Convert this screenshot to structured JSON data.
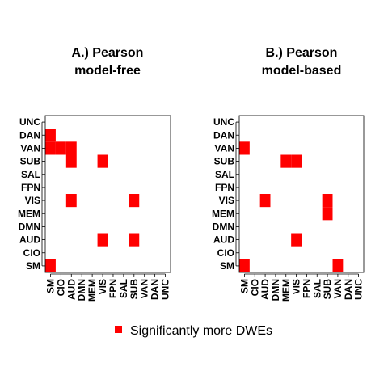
{
  "chart_data": [
    {
      "type": "heatmap",
      "title": "A.) Pearson\nmodel-free",
      "x_categories": [
        "SM",
        "CIO",
        "AUD",
        "DMN",
        "MEM",
        "VIS",
        "FPN",
        "SAL",
        "SUB",
        "VAN",
        "DAN",
        "UNC"
      ],
      "y_categories": [
        "SM",
        "CIO",
        "AUD",
        "DMN",
        "MEM",
        "VIS",
        "FPN",
        "SAL",
        "SUB",
        "VAN",
        "DAN",
        "UNC"
      ],
      "significant_cells": [
        [
          "SM",
          "SM"
        ],
        [
          "VAN",
          "SM"
        ],
        [
          "DAN",
          "SM"
        ],
        [
          "VAN",
          "CIO"
        ],
        [
          "VAN",
          "AUD"
        ],
        [
          "SUB",
          "AUD"
        ],
        [
          "VIS",
          "AUD"
        ],
        [
          "SUB",
          "VIS"
        ],
        [
          "AUD",
          "VIS"
        ],
        [
          "VIS",
          "SUB"
        ],
        [
          "AUD",
          "SUB"
        ]
      ]
    },
    {
      "type": "heatmap",
      "title": "B.) Pearson\nmodel-based",
      "x_categories": [
        "SM",
        "CIO",
        "AUD",
        "DMN",
        "MEM",
        "VIS",
        "FPN",
        "SAL",
        "SUB",
        "VAN",
        "DAN",
        "UNC"
      ],
      "y_categories": [
        "SM",
        "CIO",
        "AUD",
        "DMN",
        "MEM",
        "VIS",
        "FPN",
        "SAL",
        "SUB",
        "VAN",
        "DAN",
        "UNC"
      ],
      "significant_cells": [
        [
          "SM",
          "SM"
        ],
        [
          "VAN",
          "SM"
        ],
        [
          "VIS",
          "AUD"
        ],
        [
          "SUB",
          "MEM"
        ],
        [
          "SUB",
          "VIS"
        ],
        [
          "AUD",
          "VIS"
        ],
        [
          "VIS",
          "SUB"
        ],
        [
          "MEM",
          "SUB"
        ],
        [
          "SM",
          "VAN"
        ]
      ]
    }
  ],
  "legend": {
    "label": "Significantly more DWEs",
    "color": "#ff0000"
  },
  "colors": {
    "significant": "#ff0000",
    "axis": "#000000"
  }
}
